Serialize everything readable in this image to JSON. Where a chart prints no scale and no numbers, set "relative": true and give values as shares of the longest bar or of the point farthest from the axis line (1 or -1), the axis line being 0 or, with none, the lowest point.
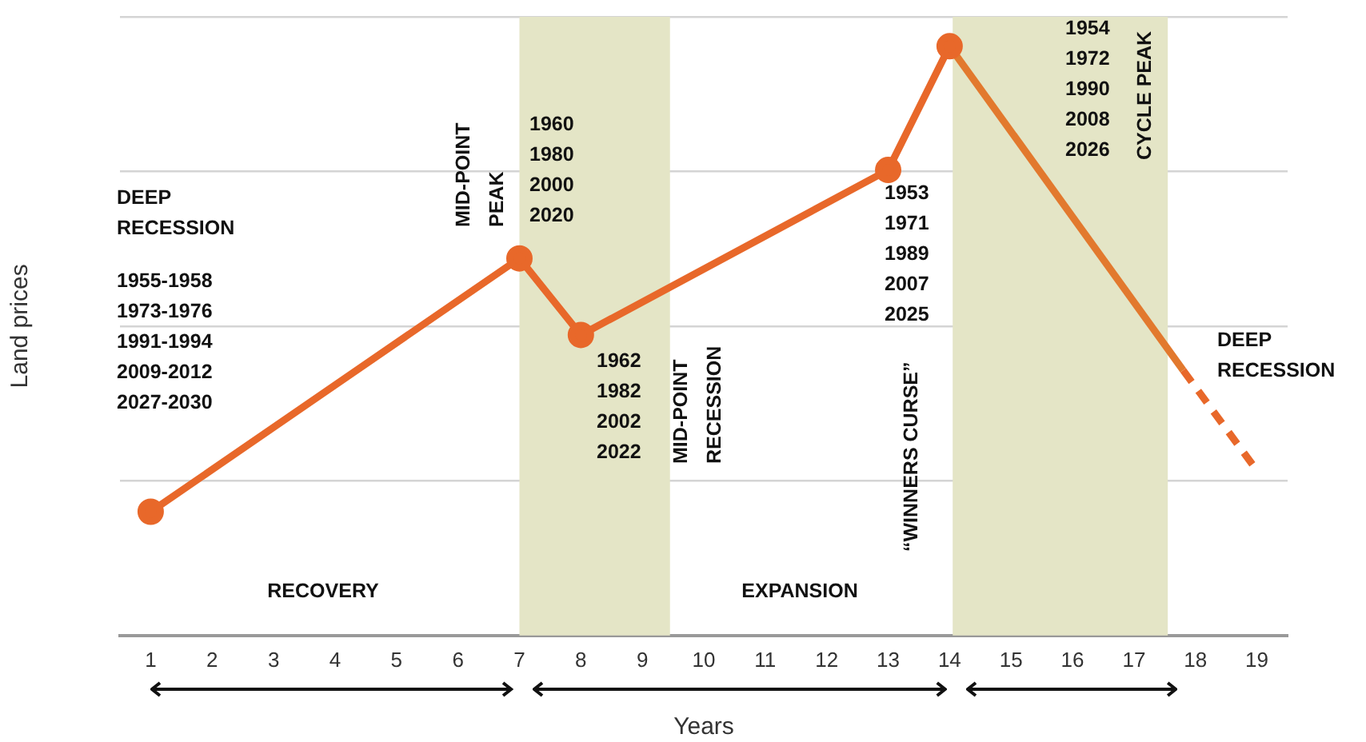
{
  "chart_data": {
    "type": "line",
    "xlabel": "Years",
    "ylabel": "Land prices",
    "relative": true,
    "grid": "y",
    "legend": false,
    "xlim": [
      0.5,
      19.5
    ],
    "xticks": [
      1,
      2,
      3,
      4,
      5,
      6,
      7,
      8,
      9,
      10,
      11,
      12,
      13,
      14,
      15,
      16,
      17,
      18,
      19
    ],
    "series": [
      {
        "x": [
          1,
          7,
          8,
          13,
          14
        ],
        "values": [
          0.21,
          0.64,
          0.51,
          0.79,
          1
        ],
        "color": "#e8682a",
        "marker": "circle",
        "line_style": "solid"
      },
      {
        "x": [
          14,
          17.8
        ],
        "values": [
          1,
          0.45
        ],
        "color": "#e2792e",
        "marker": "none",
        "line_style": "solid"
      },
      {
        "x": [
          17.8,
          19
        ],
        "values": [
          0.45,
          0.28
        ],
        "color": "#e8682a",
        "marker": "none",
        "line_style": "dashed"
      }
    ],
    "bands": [
      {
        "axis": "x",
        "from": 7,
        "to": 9.45,
        "color": "#e4e5c6"
      },
      {
        "axis": "x",
        "from": 14.05,
        "to": 17.55,
        "color": "#e4e5c6"
      }
    ],
    "annotations": [
      "DEEP\nRECESSION",
      "1955-1958\n1973-1976\n1991-1994\n2009-2012\n2027-2030",
      "MID-POINT\nPEAK",
      "1960\n1980\n2000\n2020",
      "1962\n1982\n2002\n2022",
      "MID-POINT\nRECESSION",
      "1953\n1971\n1989\n2007\n2025",
      "“WINNERS CURSE”",
      "1954\n1972\n1990\n2008\n2026",
      "CYCLE PEAK",
      "DEEP\nRECESSION",
      "RECOVERY",
      "EXPANSION"
    ]
  }
}
